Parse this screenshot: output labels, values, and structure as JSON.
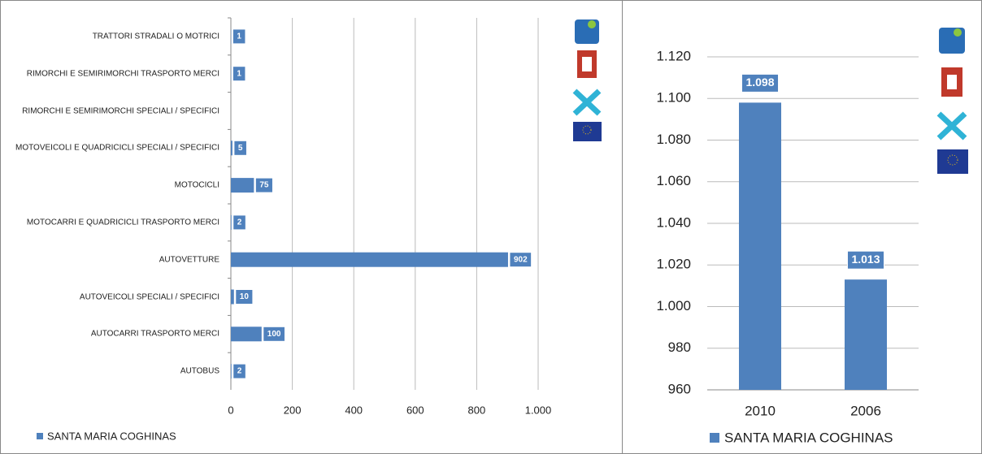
{
  "chart_data": [
    {
      "type": "bar",
      "orientation": "horizontal",
      "categories": [
        "TRATTORI STRADALI O MOTRICI",
        "RIMORCHI E SEMIRIMORCHI TRASPORTO MERCI",
        "RIMORCHI E SEMIRIMORCHI SPECIALI / SPECIFICI",
        "MOTOVEICOLI E QUADRICICLI SPECIALI / SPECIFICI",
        "MOTOCICLI",
        "MOTOCARRI E QUADRICICLI TRASPORTO MERCI",
        "AUTOVETTURE",
        "AUTOVEICOLI SPECIALI / SPECIFICI",
        "AUTOCARRI TRASPORTO MERCI",
        "AUTOBUS"
      ],
      "series": [
        {
          "name": "SANTA MARIA COGHINAS",
          "color": "#4f81bd",
          "values": [
            1,
            1,
            null,
            5,
            75,
            2,
            902,
            10,
            100,
            2
          ]
        }
      ],
      "xlim": [
        0,
        1000
      ],
      "xticks": [
        0,
        200,
        400,
        600,
        800,
        {
          "value": 1000,
          "label": "1.000"
        }
      ],
      "grid": true,
      "legend": "bottom-left"
    },
    {
      "type": "bar",
      "orientation": "vertical",
      "categories": [
        "2010",
        "2006"
      ],
      "series": [
        {
          "name": "SANTA MARIA COGHINAS",
          "color": "#4f81bd",
          "values": [
            1098,
            1013
          ],
          "value_labels": [
            "1.098",
            "1.013"
          ]
        }
      ],
      "ylim": [
        960,
        1120
      ],
      "yticks": [
        960,
        980,
        {
          "value": 1000,
          "label": "1.000"
        },
        {
          "value": 1020,
          "label": "1.020"
        },
        {
          "value": 1040,
          "label": "1.040"
        },
        {
          "value": 1060,
          "label": "1.060"
        },
        {
          "value": 1080,
          "label": "1.080"
        },
        {
          "value": 1100,
          "label": "1.100"
        },
        {
          "value": 1120,
          "label": "1.120"
        }
      ],
      "grid": true,
      "legend": "bottom"
    }
  ]
}
